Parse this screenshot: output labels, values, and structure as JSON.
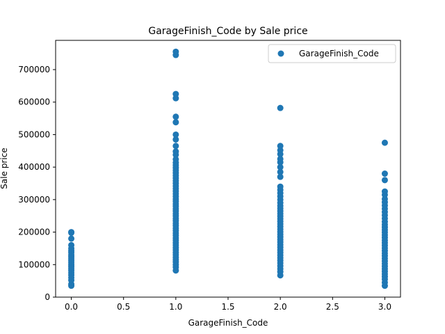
{
  "chart_data": {
    "type": "scatter",
    "title": "GarageFinish_Code by Sale price",
    "xlabel": "GarageFinish_Code",
    "ylabel": "Sale price",
    "xlim": [
      -0.15,
      3.15
    ],
    "ylim": [
      0,
      790000
    ],
    "x_ticks": [
      0.0,
      0.5,
      1.0,
      1.5,
      2.0,
      2.5,
      3.0
    ],
    "x_tick_labels": [
      "0.0",
      "0.5",
      "1.0",
      "1.5",
      "2.0",
      "2.5",
      "3.0"
    ],
    "y_ticks": [
      0,
      100000,
      200000,
      300000,
      400000,
      500000,
      600000,
      700000
    ],
    "y_tick_labels": [
      "0",
      "100000",
      "200000",
      "300000",
      "400000",
      "500000",
      "600000",
      "700000"
    ],
    "legend_position": "top-right",
    "grid": false,
    "series": [
      {
        "name": "GarageFinish_Code",
        "color": "#1f77b4",
        "points": [
          [
            0,
            35000
          ],
          [
            0,
            40000
          ],
          [
            0,
            52000
          ],
          [
            0,
            60000
          ],
          [
            0,
            68000
          ],
          [
            0,
            75000
          ],
          [
            0,
            82000
          ],
          [
            0,
            88000
          ],
          [
            0,
            94000
          ],
          [
            0,
            100000
          ],
          [
            0,
            106000
          ],
          [
            0,
            112000
          ],
          [
            0,
            118000
          ],
          [
            0,
            124000
          ],
          [
            0,
            130000
          ],
          [
            0,
            137000
          ],
          [
            0,
            143000
          ],
          [
            0,
            150000
          ],
          [
            0,
            160000
          ],
          [
            0,
            180000
          ],
          [
            0,
            198000
          ],
          [
            0,
            200000
          ],
          [
            1,
            82000
          ],
          [
            1,
            92000
          ],
          [
            1,
            100000
          ],
          [
            1,
            108000
          ],
          [
            1,
            115000
          ],
          [
            1,
            122000
          ],
          [
            1,
            130000
          ],
          [
            1,
            137000
          ],
          [
            1,
            145000
          ],
          [
            1,
            152000
          ],
          [
            1,
            160000
          ],
          [
            1,
            167000
          ],
          [
            1,
            175000
          ],
          [
            1,
            182000
          ],
          [
            1,
            190000
          ],
          [
            1,
            197000
          ],
          [
            1,
            205000
          ],
          [
            1,
            212000
          ],
          [
            1,
            220000
          ],
          [
            1,
            227000
          ],
          [
            1,
            235000
          ],
          [
            1,
            242000
          ],
          [
            1,
            250000
          ],
          [
            1,
            257000
          ],
          [
            1,
            265000
          ],
          [
            1,
            272000
          ],
          [
            1,
            280000
          ],
          [
            1,
            287000
          ],
          [
            1,
            295000
          ],
          [
            1,
            302000
          ],
          [
            1,
            310000
          ],
          [
            1,
            318000
          ],
          [
            1,
            326000
          ],
          [
            1,
            334000
          ],
          [
            1,
            342000
          ],
          [
            1,
            350000
          ],
          [
            1,
            358000
          ],
          [
            1,
            366000
          ],
          [
            1,
            374000
          ],
          [
            1,
            382000
          ],
          [
            1,
            390000
          ],
          [
            1,
            398000
          ],
          [
            1,
            406000
          ],
          [
            1,
            414000
          ],
          [
            1,
            424000
          ],
          [
            1,
            438000
          ],
          [
            1,
            448000
          ],
          [
            1,
            465000
          ],
          [
            1,
            485000
          ],
          [
            1,
            500000
          ],
          [
            1,
            538000
          ],
          [
            1,
            555000
          ],
          [
            1,
            612000
          ],
          [
            1,
            625000
          ],
          [
            1,
            745000
          ],
          [
            1,
            755000
          ],
          [
            2,
            67000
          ],
          [
            2,
            78000
          ],
          [
            2,
            87000
          ],
          [
            2,
            96000
          ],
          [
            2,
            105000
          ],
          [
            2,
            113000
          ],
          [
            2,
            121000
          ],
          [
            2,
            129000
          ],
          [
            2,
            137000
          ],
          [
            2,
            145000
          ],
          [
            2,
            153000
          ],
          [
            2,
            161000
          ],
          [
            2,
            169000
          ],
          [
            2,
            177000
          ],
          [
            2,
            185000
          ],
          [
            2,
            193000
          ],
          [
            2,
            201000
          ],
          [
            2,
            209000
          ],
          [
            2,
            217000
          ],
          [
            2,
            225000
          ],
          [
            2,
            233000
          ],
          [
            2,
            241000
          ],
          [
            2,
            249000
          ],
          [
            2,
            257000
          ],
          [
            2,
            265000
          ],
          [
            2,
            273000
          ],
          [
            2,
            281000
          ],
          [
            2,
            290000
          ],
          [
            2,
            300000
          ],
          [
            2,
            310000
          ],
          [
            2,
            320000
          ],
          [
            2,
            330000
          ],
          [
            2,
            340000
          ],
          [
            2,
            370000
          ],
          [
            2,
            385000
          ],
          [
            2,
            400000
          ],
          [
            2,
            415000
          ],
          [
            2,
            425000
          ],
          [
            2,
            440000
          ],
          [
            2,
            452000
          ],
          [
            2,
            465000
          ],
          [
            2,
            582000
          ],
          [
            3,
            35000
          ],
          [
            3,
            45000
          ],
          [
            3,
            55000
          ],
          [
            3,
            63000
          ],
          [
            3,
            71000
          ],
          [
            3,
            79000
          ],
          [
            3,
            87000
          ],
          [
            3,
            95000
          ],
          [
            3,
            103000
          ],
          [
            3,
            111000
          ],
          [
            3,
            119000
          ],
          [
            3,
            127000
          ],
          [
            3,
            135000
          ],
          [
            3,
            143000
          ],
          [
            3,
            151000
          ],
          [
            3,
            159000
          ],
          [
            3,
            167000
          ],
          [
            3,
            175000
          ],
          [
            3,
            183000
          ],
          [
            3,
            191000
          ],
          [
            3,
            199000
          ],
          [
            3,
            207000
          ],
          [
            3,
            215000
          ],
          [
            3,
            223000
          ],
          [
            3,
            232000
          ],
          [
            3,
            242000
          ],
          [
            3,
            252000
          ],
          [
            3,
            262000
          ],
          [
            3,
            272000
          ],
          [
            3,
            282000
          ],
          [
            3,
            292000
          ],
          [
            3,
            302000
          ],
          [
            3,
            315000
          ],
          [
            3,
            325000
          ],
          [
            3,
            360000
          ],
          [
            3,
            380000
          ],
          [
            3,
            475000
          ]
        ]
      }
    ]
  }
}
